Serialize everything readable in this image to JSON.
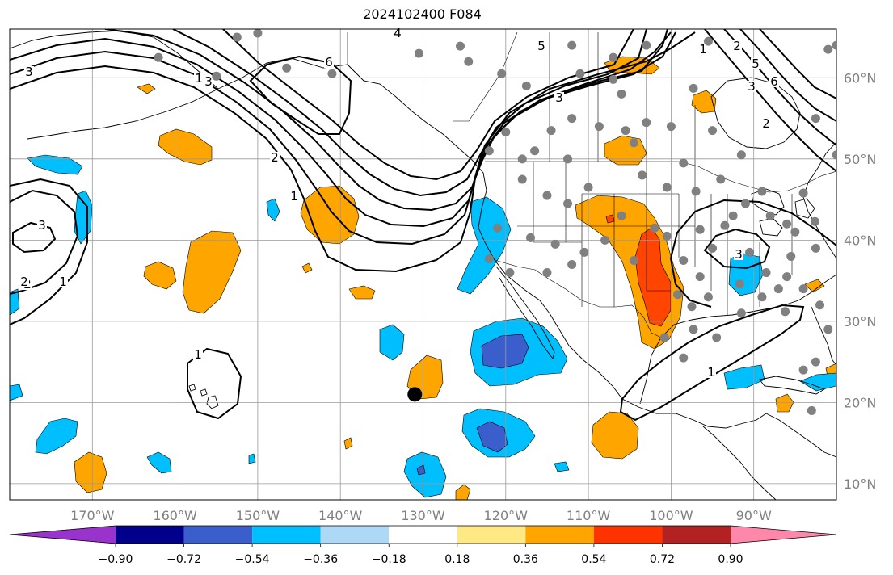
{
  "title": "2024102400 F084",
  "map": {
    "projection": "plate-carree",
    "lon_range": [
      -180,
      -80
    ],
    "lat_range": [
      8,
      66
    ],
    "lon_ticks": [
      {
        "lon": -170,
        "label": "170°W"
      },
      {
        "lon": -160,
        "label": "160°W"
      },
      {
        "lon": -150,
        "label": "150°W"
      },
      {
        "lon": -140,
        "label": "140°W"
      },
      {
        "lon": -130,
        "label": "130°W"
      },
      {
        "lon": -120,
        "label": "120°W"
      },
      {
        "lon": -110,
        "label": "110°W"
      },
      {
        "lon": -100,
        "label": "100°W"
      },
      {
        "lon": -90,
        "label": "90°W"
      }
    ],
    "lat_ticks": [
      {
        "lat": 10,
        "label": "10°N"
      },
      {
        "lat": 20,
        "label": "20°N"
      },
      {
        "lat": 30,
        "label": "30°N"
      },
      {
        "lat": 40,
        "label": "40°N"
      },
      {
        "lat": 50,
        "label": "50°N"
      },
      {
        "lat": 60,
        "label": "60°N"
      }
    ],
    "grid": true,
    "marker": {
      "lon": -131,
      "lat": 21,
      "color": "#000000"
    }
  },
  "colorbar": {
    "ticks": [
      "−0.90",
      "−0.72",
      "−0.54",
      "−0.36",
      "−0.18",
      "0.18",
      "0.36",
      "0.54",
      "0.72",
      "0.90"
    ],
    "colors": [
      "#9933cc",
      "#00008b",
      "#3a5fcd",
      "#00bfff",
      "#add8f6",
      "#ffffff",
      "#ffe985",
      "#ffa500",
      "#ff3300",
      "#b22222",
      "#ff88aa"
    ],
    "extend": "both"
  },
  "contour_labels": [
    "3",
    "2",
    "1",
    "6",
    "4",
    "5",
    "3",
    "1",
    "2",
    "3",
    "2",
    "1",
    "5",
    "3",
    "2",
    "3",
    "6",
    "1",
    "2",
    "1",
    "1",
    "3"
  ],
  "stations": [
    [
      -125.5,
      63.9
    ],
    [
      -150,
      65.5
    ],
    [
      -152.5,
      65
    ],
    [
      -162,
      62.5
    ],
    [
      -155,
      60.2
    ],
    [
      -146.5,
      61.2
    ],
    [
      -141,
      60.5
    ],
    [
      -130.5,
      63
    ],
    [
      -124.5,
      62
    ],
    [
      -117.5,
      59
    ],
    [
      -120.5,
      60.5
    ],
    [
      -111,
      60.5
    ],
    [
      -107,
      59.8
    ],
    [
      -120,
      53.3
    ],
    [
      -114.5,
      53.5
    ],
    [
      -104.5,
      52
    ],
    [
      -103,
      54.5
    ],
    [
      -105.5,
      53.5
    ],
    [
      -122,
      51
    ],
    [
      -118,
      50
    ],
    [
      -112.5,
      50
    ],
    [
      -103.5,
      48
    ],
    [
      -98.5,
      49.5
    ],
    [
      -94,
      47.5
    ],
    [
      -100.5,
      46.5
    ],
    [
      -97,
      46
    ],
    [
      -110,
      46.5
    ],
    [
      -115,
      45.5
    ],
    [
      -118,
      47.5
    ],
    [
      -112.5,
      44.5
    ],
    [
      -106,
      43
    ],
    [
      -102,
      41.5
    ],
    [
      -96.5,
      41.3
    ],
    [
      -93.5,
      41.8
    ],
    [
      -90.5,
      38.5
    ],
    [
      -95,
      39
    ],
    [
      -98.5,
      37.5
    ],
    [
      -104.5,
      37.5
    ],
    [
      -110.5,
      38.5
    ],
    [
      -112,
      37
    ],
    [
      -115,
      36
    ],
    [
      -119.5,
      36
    ],
    [
      -122,
      37.7
    ],
    [
      -117,
      40.3
    ],
    [
      -121,
      41.5
    ],
    [
      -108,
      40
    ],
    [
      -114,
      39.5
    ],
    [
      -100.5,
      40.5
    ],
    [
      -96.5,
      35.5
    ],
    [
      -99.2,
      33.3
    ],
    [
      -95.5,
      33
    ],
    [
      -97.5,
      31.8
    ],
    [
      -97.3,
      29
    ],
    [
      -100.8,
      28
    ],
    [
      -98.5,
      25.5
    ],
    [
      -94.5,
      28
    ],
    [
      -91.5,
      31
    ],
    [
      -89,
      33
    ],
    [
      -86,
      35.5
    ],
    [
      -88.5,
      36
    ],
    [
      -91.7,
      34.6
    ],
    [
      -84,
      34
    ],
    [
      -82,
      32
    ],
    [
      -81,
      29
    ],
    [
      -82.5,
      25
    ],
    [
      -84,
      24
    ],
    [
      -86.2,
      31.2
    ],
    [
      -87,
      34
    ],
    [
      -85.5,
      38
    ],
    [
      -82.5,
      39
    ],
    [
      -85,
      41
    ],
    [
      -88,
      43
    ],
    [
      -84,
      45.8
    ],
    [
      -89,
      46
    ],
    [
      -91,
      44.5
    ],
    [
      -92.5,
      43
    ],
    [
      -86,
      42
    ],
    [
      -82.6,
      42.3
    ],
    [
      -91.5,
      50.5
    ],
    [
      -80,
      50.5
    ],
    [
      -95,
      53.5
    ],
    [
      -100,
      54
    ],
    [
      -80,
      64
    ],
    [
      -81,
      63.5
    ],
    [
      -95.5,
      64.5
    ],
    [
      -103,
      64
    ],
    [
      -112,
      64
    ],
    [
      -107,
      62.5
    ],
    [
      -97.3,
      58.7
    ],
    [
      -82.5,
      55
    ],
    [
      -106,
      58
    ],
    [
      -108.7,
      54
    ],
    [
      -112,
      55
    ],
    [
      -116.5,
      51
    ],
    [
      -83,
      19
    ]
  ]
}
